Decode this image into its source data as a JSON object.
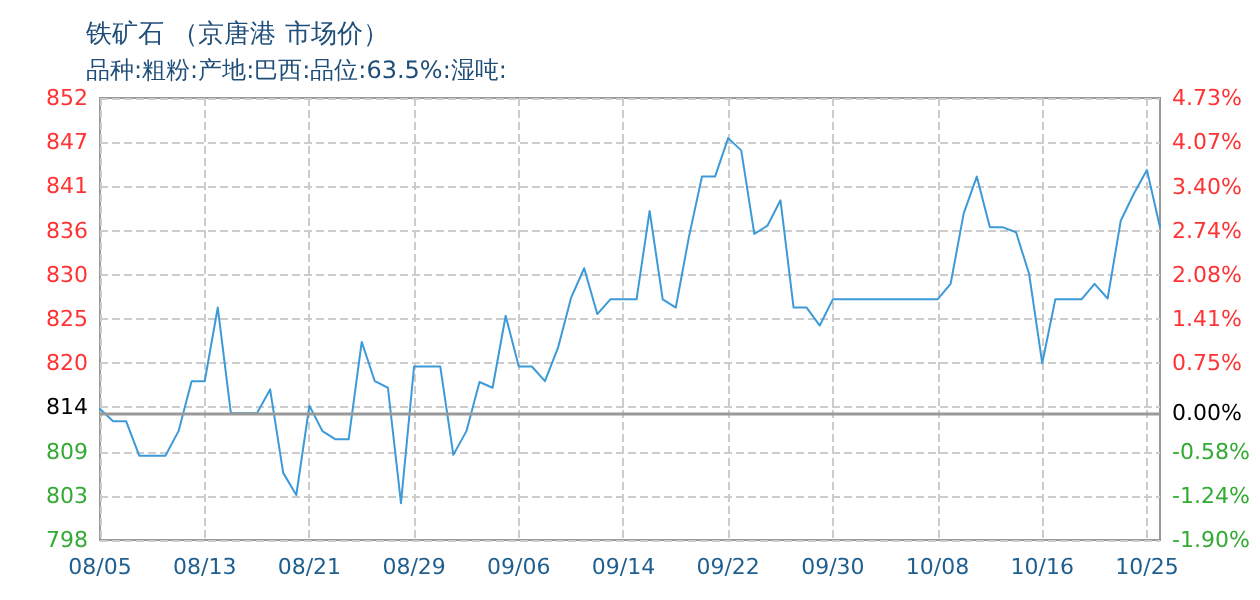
{
  "chart_data": {
    "type": "line",
    "title": "铁矿石 （京唐港 市场价）",
    "subtitle": "品种:粗粉:产地:巴西:品位:63.5%:湿吨:",
    "categories": [
      "08/05",
      null,
      null,
      null,
      null,
      null,
      null,
      null,
      "08/13",
      null,
      null,
      null,
      null,
      null,
      null,
      null,
      "08/21",
      null,
      null,
      null,
      null,
      null,
      null,
      null,
      "08/29",
      null,
      null,
      null,
      null,
      null,
      null,
      null,
      "09/06",
      null,
      null,
      null,
      null,
      null,
      null,
      null,
      "09/14",
      null,
      null,
      null,
      null,
      null,
      null,
      null,
      "09/22",
      null,
      null,
      null,
      null,
      null,
      null,
      null,
      "09/30",
      null,
      null,
      null,
      null,
      null,
      null,
      null,
      "10/08",
      null,
      null,
      null,
      null,
      null,
      null,
      null,
      "10/16",
      null,
      null,
      null,
      null,
      null,
      null,
      null,
      "10/25",
      null
    ],
    "series": [
      {
        "color": "#3d9ad8",
        "values": [
          814,
          812.5,
          812.5,
          808.3,
          808.3,
          808.3,
          811.3,
          817.4,
          817.4,
          826.4,
          813.5,
          813.5,
          813.5,
          816.4,
          806.2,
          803.5,
          814.4,
          811.3,
          810.3,
          810.3,
          822.2,
          817.4,
          816.6,
          802.5,
          819.2,
          819.2,
          819.2,
          808.4,
          811.3,
          817.3,
          816.6,
          825.4,
          819.2,
          819.2,
          817.4,
          821.5,
          827.6,
          831.2,
          825.6,
          827.4,
          827.4,
          827.4,
          838.2,
          827.4,
          826.4,
          835,
          842.4,
          842.4,
          847.1,
          845.6,
          835.4,
          836.4,
          839.5,
          826.4,
          826.4,
          824.2,
          827.4,
          827.4,
          827.4,
          827.4,
          827.4,
          827.4,
          827.4,
          827.4,
          827.4,
          829.3,
          837.9,
          842.4,
          836.2,
          836.2,
          835.6,
          830.5,
          819.6,
          827.4,
          827.4,
          827.4,
          829.3,
          827.5,
          837,
          840.3,
          843.2,
          836.2
        ]
      }
    ],
    "ylim": [
      798,
      852
    ],
    "yticks": [
      798,
      {
        "value": 803.4,
        "label": "803"
      },
      {
        "value": 808.8,
        "label": "809"
      },
      {
        "value": 814.2,
        "label": "814"
      },
      {
        "value": 819.6,
        "label": "820"
      },
      825,
      {
        "value": 830.4,
        "label": "830"
      },
      {
        "value": 835.8,
        "label": "836"
      },
      {
        "value": 841.2,
        "label": "841"
      },
      {
        "value": 846.6,
        "label": "847"
      },
      852
    ],
    "y2lim": [
      -1.9,
      4.73
    ],
    "y2ticks": [
      {
        "value": -1.9,
        "label": "-1.90%"
      },
      {
        "value": -1.24,
        "label": "-1.24%"
      },
      {
        "value": -0.58,
        "label": "-0.58%"
      },
      {
        "value": 0,
        "label": "0.00%"
      },
      {
        "value": 0.75,
        "label": "0.75%"
      },
      {
        "value": 1.41,
        "label": "1.41%"
      },
      {
        "value": 2.08,
        "label": "2.08%"
      },
      {
        "value": 2.74,
        "label": "2.74%"
      },
      {
        "value": 3.4,
        "label": "3.40%"
      },
      {
        "value": 4.07,
        "label": "4.07%"
      },
      {
        "value": 4.73,
        "label": "4.73%"
      }
    ],
    "ref_lines": [
      {
        "axis": "y2",
        "value": 0,
        "color": "#999999",
        "line_style": "solid"
      }
    ],
    "grid": true,
    "marker": "none",
    "line_style": "solid"
  }
}
